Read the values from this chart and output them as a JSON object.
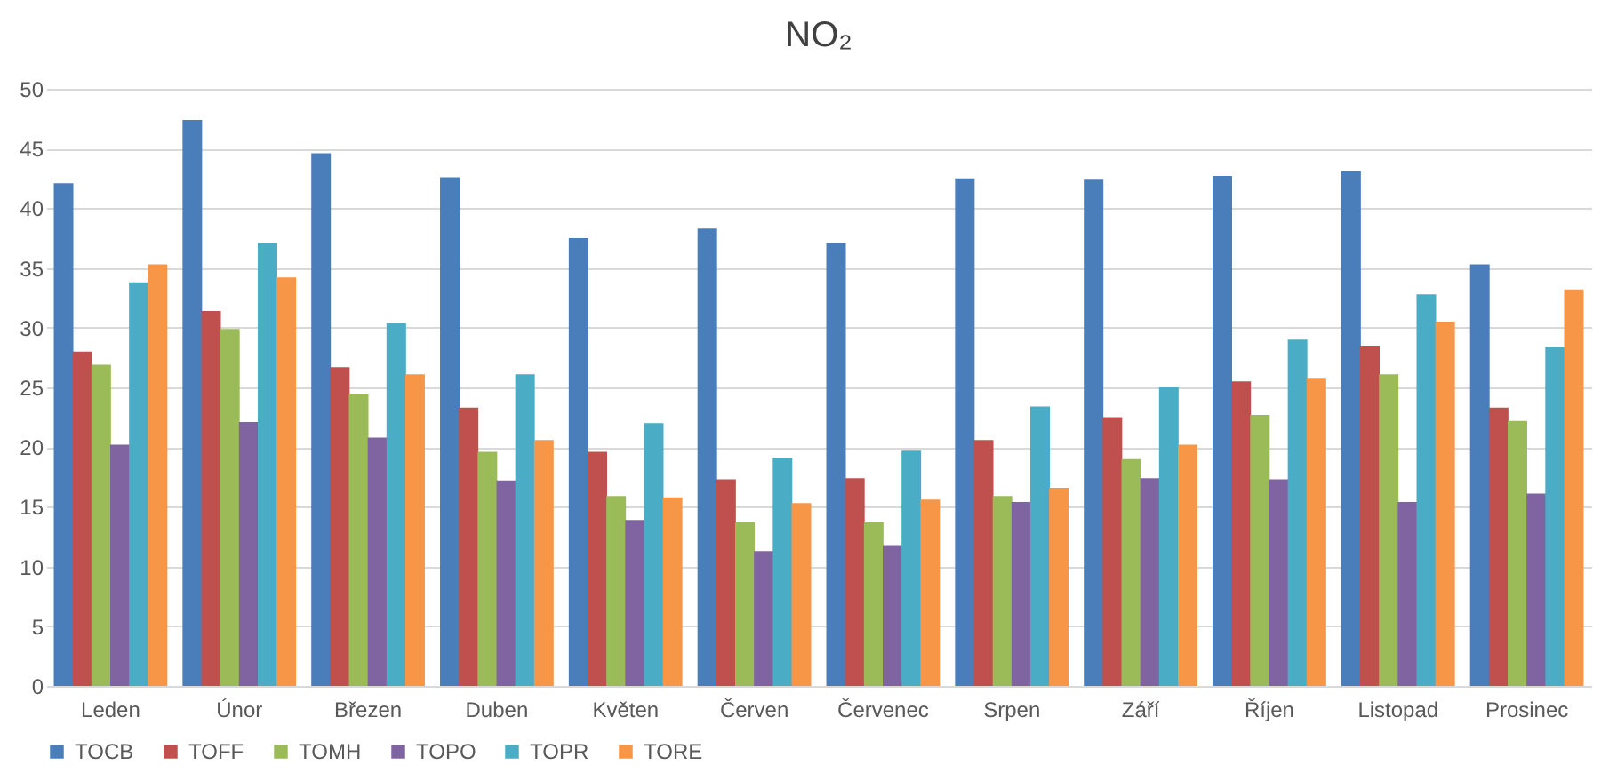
{
  "chart_data": {
    "type": "bar",
    "title": "NO₂",
    "categories": [
      "Leden",
      "Únor",
      "Březen",
      "Duben",
      "Květen",
      "Červen",
      "Červenec",
      "Srpen",
      "Září",
      "Říjen",
      "Listopad",
      "Prosinec"
    ],
    "series": [
      {
        "name": "TOCB",
        "color": "#4a7ebb",
        "values": [
          42.1,
          47.4,
          44.6,
          42.6,
          37.5,
          38.3,
          37.1,
          42.5,
          42.4,
          42.7,
          43.1,
          35.3
        ]
      },
      {
        "name": "TOFF",
        "color": "#c0504d",
        "values": [
          28,
          31.4,
          26.7,
          23.3,
          19.6,
          17.3,
          17.4,
          20.6,
          22.5,
          25.5,
          28.5,
          23.3
        ]
      },
      {
        "name": "TOMH",
        "color": "#9bbb59",
        "values": [
          26.9,
          29.9,
          24.4,
          19.6,
          15.9,
          13.7,
          13.7,
          15.9,
          19,
          22.7,
          26.1,
          22.2
        ]
      },
      {
        "name": "TOPO",
        "color": "#8064a2",
        "values": [
          20.2,
          22.1,
          20.8,
          17.2,
          13.9,
          11.3,
          11.8,
          15.4,
          17.4,
          17.3,
          15.4,
          16.1
        ]
      },
      {
        "name": "TOPR",
        "color": "#4bacc6",
        "values": [
          33.8,
          37.1,
          30.4,
          26.1,
          22,
          19.1,
          19.7,
          23.4,
          25,
          29,
          32.8,
          28.4
        ]
      },
      {
        "name": "TORE",
        "color": "#f79646",
        "values": [
          35.3,
          34.2,
          26.1,
          20.6,
          15.8,
          15.3,
          15.6,
          16.6,
          20.2,
          25.8,
          30.5,
          33.2
        ]
      }
    ],
    "ylim": [
      0,
      50
    ],
    "yticks": [
      0,
      5,
      10,
      15,
      20,
      25,
      30,
      35,
      40,
      45,
      50
    ],
    "grid": "y",
    "legend": "bottom"
  }
}
